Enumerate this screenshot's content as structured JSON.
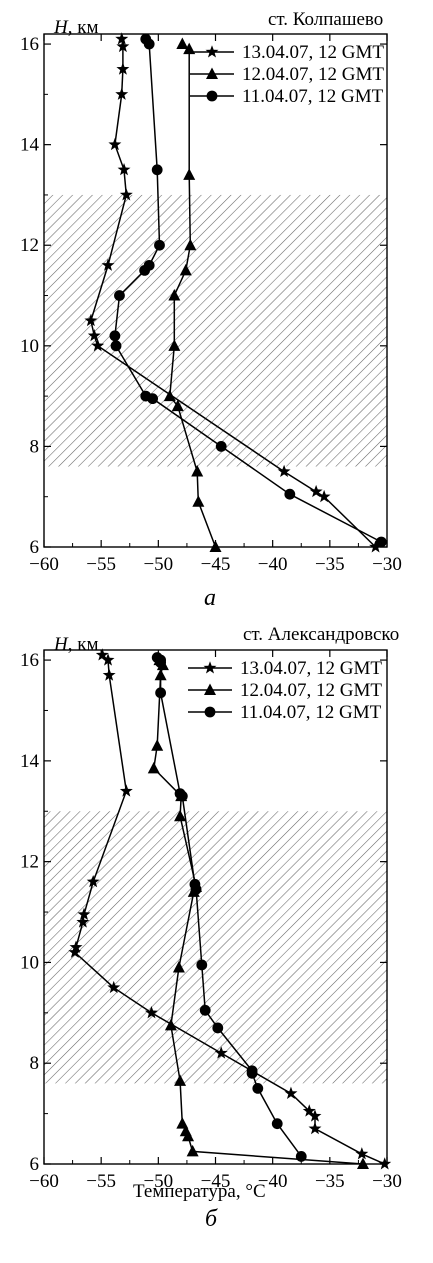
{
  "chart_data": [
    {
      "type": "line",
      "panel_label": "а",
      "station": "ст. Колпашево",
      "ylabel_italic": "H",
      "ylabel_unit": ", км",
      "xlabel": "",
      "xlim": [
        -60,
        -30
      ],
      "ylim": [
        6,
        16.2
      ],
      "xticks": [
        -60,
        -55,
        -50,
        -45,
        -40,
        -35,
        -30
      ],
      "yticks": [
        6,
        8,
        10,
        12,
        14,
        16
      ],
      "shaded_band": [
        7.6,
        13
      ],
      "series": [
        {
          "name": "13.04.07, 12 GMT",
          "marker": "star",
          "x": [
            -31,
            -35.5,
            -36.2,
            -39,
            -55.3,
            -55.6,
            -55.9,
            -54.4,
            -52.8,
            -53,
            -53.8,
            -53.2,
            -53.1,
            -53.1,
            -53.2
          ],
          "y": [
            6,
            7,
            7.1,
            7.5,
            10,
            10.2,
            10.5,
            11.6,
            13,
            13.5,
            14,
            15,
            15.5,
            15.95,
            16.1
          ]
        },
        {
          "name": "12.04.07, 12 GMT",
          "marker": "triangle",
          "x": [
            -45,
            -46.5,
            -46.6,
            -48.3,
            -49,
            -48.6,
            -48.6,
            -47.6,
            -47.2,
            -47.3,
            -47.3,
            -47.9
          ],
          "y": [
            6,
            6.9,
            7.5,
            8.8,
            9,
            10,
            11,
            11.5,
            12,
            13.4,
            15.9,
            16
          ]
        },
        {
          "name": "11.04.07, 12 GMT",
          "marker": "circle",
          "x": [
            -30.5,
            -38.5,
            -44.5,
            -50.5,
            -51.1,
            -53.7,
            -53.8,
            -53.4,
            -51.2,
            -50.8,
            -49.9,
            -50.1,
            -50.8,
            -51.1
          ],
          "y": [
            6.1,
            7.05,
            8,
            8.95,
            9,
            10,
            10.2,
            11,
            11.5,
            11.6,
            12,
            13.5,
            16,
            16.1
          ]
        }
      ]
    },
    {
      "type": "line",
      "panel_label": "б",
      "station": "ст. Александровско",
      "ylabel_italic": "H",
      "ylabel_unit": ", км",
      "xlabel": "Температура, °C",
      "xlim": [
        -60,
        -30
      ],
      "ylim": [
        6,
        16.2
      ],
      "xticks": [
        -60,
        -55,
        -50,
        -45,
        -40,
        -35,
        -30
      ],
      "yticks": [
        6,
        8,
        10,
        12,
        14,
        16
      ],
      "shaded_band": [
        7.6,
        13
      ],
      "series": [
        {
          "name": "13.04.07, 12 GMT",
          "marker": "star",
          "x": [
            -30.2,
            -32.2,
            -36.3,
            -36.3,
            -36.8,
            -38.4,
            -44.5,
            -50.6,
            -53.9,
            -57.3,
            -57.2,
            -56.6,
            -56.5,
            -55.7,
            -52.8,
            -54.3,
            -54.4,
            -54.9
          ],
          "y": [
            6,
            6.2,
            6.7,
            6.95,
            7.05,
            7.4,
            8.2,
            9,
            9.5,
            10.2,
            10.3,
            10.8,
            10.95,
            11.6,
            13.4,
            15.7,
            16,
            16.1
          ]
        },
        {
          "name": "12.04.07, 12 GMT",
          "marker": "triangle",
          "x": [
            -32.1,
            -47,
            -47.4,
            -47.6,
            -47.9,
            -48.1,
            -48.9,
            -48.2,
            -46.9,
            -46.7,
            -48.1,
            -48,
            -50.4,
            -50.1,
            -49.8,
            -49.6,
            -49.9
          ],
          "y": [
            6,
            6.25,
            6.55,
            6.65,
            6.8,
            7.65,
            8.75,
            9.9,
            11.4,
            11.5,
            12.9,
            13.3,
            13.85,
            14.3,
            15.7,
            15.9,
            16
          ]
        },
        {
          "name": "11.04.07, 12 GMT",
          "marker": "circle",
          "x": [
            -37.5,
            -39.6,
            -41.3,
            -41.8,
            -41.8,
            -44.8,
            -45.9,
            -46.2,
            -46.7,
            -46.8,
            -47.9,
            -48.1,
            -49.8,
            -49.8,
            -49.8,
            -50.1
          ],
          "y": [
            6.15,
            6.8,
            7.5,
            7.8,
            7.85,
            8.7,
            9.05,
            9.95,
            11.45,
            11.55,
            13.3,
            13.35,
            15.35,
            15.95,
            16,
            16.05
          ]
        }
      ]
    }
  ]
}
